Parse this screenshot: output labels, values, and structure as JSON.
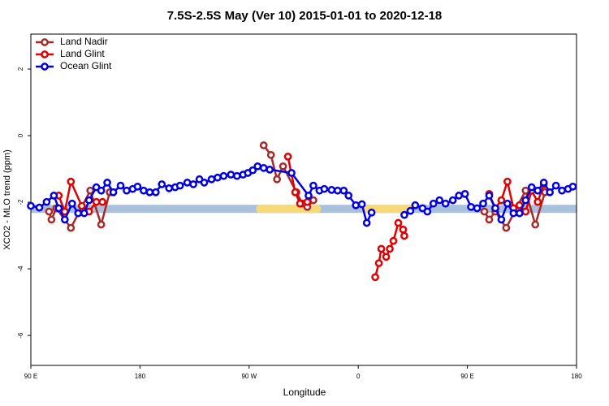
{
  "chart_data": {
    "type": "line",
    "title": "7.5S-2.5S May (Ver 10)   2015-01-01 to 2020-12-18",
    "x_label": "Longitude",
    "y_label": "XCO2 - MLO trend (ppm)",
    "xlim": [
      90,
      540
    ],
    "ylim": [
      -6.9,
      3.05
    ],
    "xticks": [
      {
        "value": 90,
        "label": "90 E"
      },
      180,
      {
        "value": 270,
        "label": "90 W"
      },
      {
        "value": 360,
        "label": "0"
      },
      {
        "value": 450,
        "label": "90 E"
      },
      {
        "value": 540,
        "label": "180"
      }
    ],
    "yticks": [
      2,
      0,
      -2,
      -4,
      -6
    ],
    "legend": "top-left",
    "band": {
      "y": -2.2,
      "color": "#a9c1dd",
      "highlight_color": "#f8d97a",
      "highlights": [
        [
          279,
          326
        ],
        [
          366,
          403
        ]
      ]
    },
    "series": [
      {
        "name": "Land Nadir",
        "color": "#a52a2a",
        "x": [
          105,
          107,
          111,
          123,
          139,
          148,
          155,
          200,
          282,
          288,
          293,
          298,
          309,
          314,
          318,
          323,
          450,
          464,
          468,
          473,
          482,
          498,
          506,
          514
        ],
        "values": [
          -2.28,
          -2.52,
          -2.18,
          -2.77,
          -1.65,
          -2.67,
          -1.7,
          null,
          -0.29,
          -0.58,
          -1.31,
          -0.92,
          -1.7,
          -2.04,
          -2.14,
          -1.94,
          null,
          -2.28,
          -2.52,
          -2.28,
          -2.77,
          -1.65,
          -2.67,
          -1.7
        ]
      },
      {
        "name": "Land Glint",
        "color": "#e00000",
        "x": [
          113,
          118,
          123,
          132,
          138,
          144,
          149,
          200,
          302,
          308,
          312,
          318,
          340,
          374,
          377,
          379,
          383,
          386,
          389,
          393,
          397,
          398,
          430,
          468,
          473,
          478,
          483,
          488,
          493,
          498,
          503,
          508,
          513
        ],
        "values": [
          -1.8,
          -2.28,
          -1.38,
          -2.11,
          -2.28,
          -1.99,
          -1.99,
          null,
          -0.63,
          -1.7,
          -2.04,
          -1.99,
          null,
          -4.25,
          -3.83,
          -3.4,
          -3.64,
          -3.4,
          -3.16,
          -2.62,
          -2.82,
          -3.01,
          null,
          -1.75,
          -2.18,
          -1.94,
          -1.38,
          -2.18,
          -2.09,
          -2.28,
          -1.65,
          -1.99,
          -1.46
        ]
      },
      {
        "name": "Ocean Glint",
        "color": "#0000e0",
        "x": [
          90,
          97,
          103,
          109,
          113,
          118,
          124,
          129,
          134,
          138,
          144,
          148,
          153,
          158,
          164,
          169,
          174,
          178,
          183,
          188,
          193,
          198,
          204,
          209,
          213,
          219,
          224,
          229,
          233,
          239,
          244,
          249,
          255,
          260,
          265,
          269,
          273,
          277,
          282,
          287,
          305,
          319,
          323,
          328,
          332,
          338,
          343,
          348,
          352,
          358,
          363,
          367,
          371,
          385,
          398,
          403,
          407,
          413,
          417,
          422,
          427,
          432,
          438,
          443,
          448,
          453,
          458,
          463,
          468,
          473,
          478,
          483,
          488,
          493,
          498,
          503,
          508,
          513,
          518,
          523,
          528,
          533,
          537
        ],
        "values": [
          -2.11,
          -2.16,
          -1.99,
          -1.8,
          -2.18,
          -2.52,
          -2.04,
          -2.33,
          -2.33,
          -1.94,
          -1.55,
          -1.65,
          -1.41,
          -1.7,
          -1.5,
          -1.65,
          -1.6,
          -1.53,
          -1.65,
          -1.7,
          -1.7,
          -1.46,
          -1.58,
          -1.55,
          -1.5,
          -1.41,
          -1.46,
          -1.31,
          -1.41,
          -1.31,
          -1.26,
          -1.21,
          -1.17,
          -1.21,
          -1.17,
          -1.12,
          -1.04,
          -0.92,
          -0.97,
          -1.02,
          -1.12,
          -1.8,
          -1.5,
          -1.65,
          -1.6,
          -1.63,
          -1.65,
          -1.65,
          -1.8,
          -2.09,
          -2.06,
          -2.62,
          -2.31,
          null,
          -2.38,
          -2.26,
          -2.09,
          -2.18,
          -2.28,
          -2.04,
          -1.94,
          -2.04,
          -1.94,
          -1.8,
          -1.75,
          -2.14,
          -2.18,
          -2.04,
          -1.8,
          -2.18,
          -2.52,
          -2.04,
          -2.33,
          -2.33,
          -1.94,
          -1.55,
          -1.65,
          -1.41,
          -1.7,
          -1.5,
          -1.65,
          -1.6,
          -1.53
        ]
      }
    ]
  }
}
